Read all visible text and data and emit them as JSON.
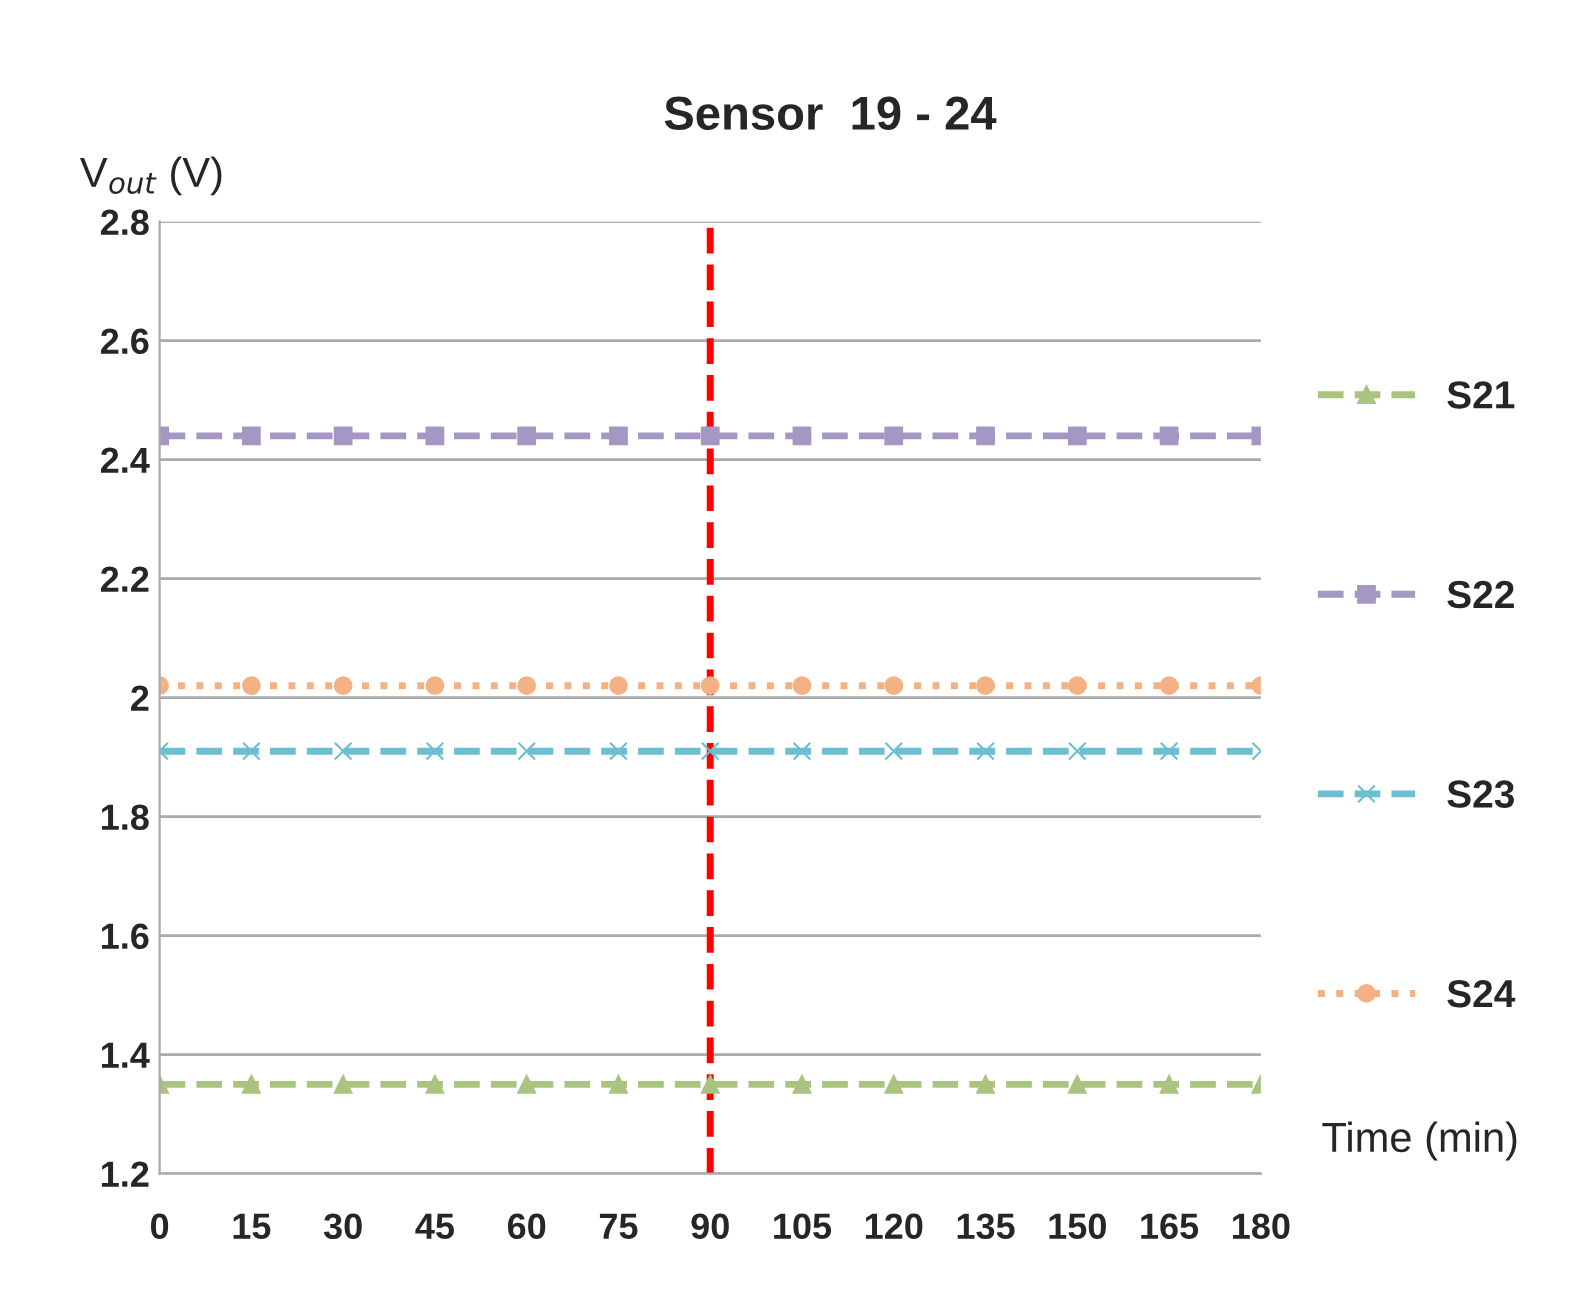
{
  "chart_data": {
    "type": "line",
    "title": "Sensor  19 - 24",
    "xlabel": "Time (min)",
    "ylabel": "V$_{out}$ (V)",
    "x": [
      0,
      15,
      30,
      45,
      60,
      75,
      90,
      105,
      120,
      135,
      150,
      165,
      180
    ],
    "series": [
      {
        "name": "S21",
        "color": "#a9c47f",
        "marker": "triangle",
        "line_style": "dashed",
        "values": [
          1.35,
          1.35,
          1.35,
          1.35,
          1.35,
          1.35,
          1.35,
          1.35,
          1.35,
          1.35,
          1.35,
          1.35,
          1.35
        ]
      },
      {
        "name": "S22",
        "color": "#a497c4",
        "marker": "square",
        "line_style": "dashed",
        "values": [
          2.44,
          2.44,
          2.44,
          2.44,
          2.44,
          2.44,
          2.44,
          2.44,
          2.44,
          2.44,
          2.44,
          2.44,
          2.44
        ]
      },
      {
        "name": "S23",
        "color": "#6cbfd0",
        "marker": "cross",
        "line_style": "dashed",
        "values": [
          1.91,
          1.91,
          1.91,
          1.91,
          1.91,
          1.91,
          1.91,
          1.91,
          1.91,
          1.91,
          1.91,
          1.91,
          1.91
        ]
      },
      {
        "name": "S24",
        "color": "#f4b183",
        "marker": "circle",
        "line_style": "dotted",
        "values": [
          2.02,
          2.02,
          2.02,
          2.02,
          2.02,
          2.02,
          2.02,
          2.02,
          2.02,
          2.02,
          2.02,
          2.02,
          2.02
        ]
      }
    ],
    "xlim": [
      0,
      180
    ],
    "xticks": [
      0,
      15,
      30,
      45,
      60,
      75,
      90,
      105,
      120,
      135,
      150,
      165,
      180
    ],
    "ylim": [
      1.2,
      2.8
    ],
    "yticks": [
      1.2,
      1.4,
      1.6,
      1.8,
      2,
      2.2,
      2.4,
      2.6,
      2.8
    ],
    "ref_lines": [
      {
        "axis": "x",
        "value": 90,
        "color": "#ff0000",
        "line_style": "dashed"
      }
    ],
    "grid": "y",
    "legend": "right"
  }
}
